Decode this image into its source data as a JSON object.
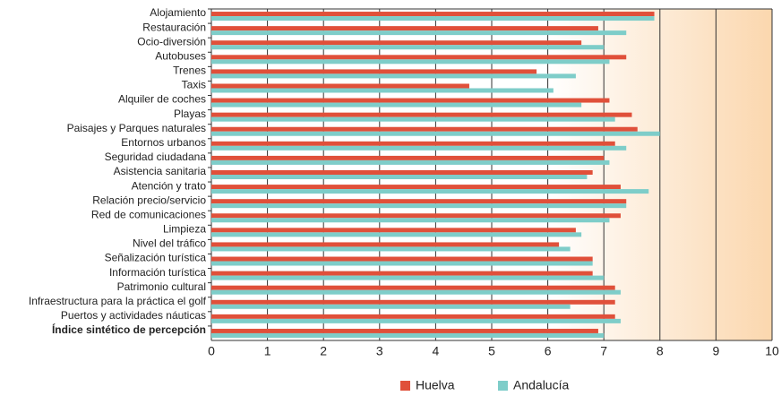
{
  "chart_data": {
    "type": "hbar",
    "categories": [
      "Alojamiento",
      "Restauración",
      "Ocio-diversión",
      "Autobuses",
      "Trenes",
      "Taxis",
      "Alquiler de coches",
      "Playas",
      "Paisajes y Parques naturales",
      "Entornos urbanos",
      "Seguridad ciudadana",
      "Asistencia sanitaria",
      "Atención y trato",
      "Relación precio/servicio",
      "Red de comunicaciones",
      "Limpieza",
      "Nivel del tráfico",
      "Señalización turística",
      "Información turística",
      "Patrimonio cultural",
      "Infraestructura para la práctica el golf",
      "Puertos y actividades náuticas",
      "Índice sintético de percepción"
    ],
    "series": [
      {
        "name": "Huelva",
        "color": "#e0503a",
        "values": [
          7.9,
          6.9,
          6.6,
          7.4,
          5.8,
          4.6,
          7.1,
          7.5,
          7.6,
          7.2,
          7.0,
          6.8,
          7.3,
          7.4,
          7.3,
          6.5,
          6.2,
          6.8,
          6.8,
          7.2,
          7.2,
          7.2,
          6.9
        ]
      },
      {
        "name": "Andalucía",
        "color": "#7ecdc9",
        "values": [
          7.9,
          7.4,
          7.0,
          7.1,
          6.5,
          6.1,
          6.6,
          7.2,
          8.0,
          7.4,
          7.1,
          6.7,
          7.8,
          7.4,
          7.1,
          6.6,
          6.4,
          6.8,
          7.0,
          7.3,
          6.4,
          7.3,
          7.0
        ]
      }
    ],
    "xlim": [
      0,
      10
    ],
    "xticks": [
      0,
      1,
      2,
      3,
      4,
      5,
      6,
      7,
      8,
      9,
      10
    ],
    "grid": true,
    "legend": "bottom"
  }
}
